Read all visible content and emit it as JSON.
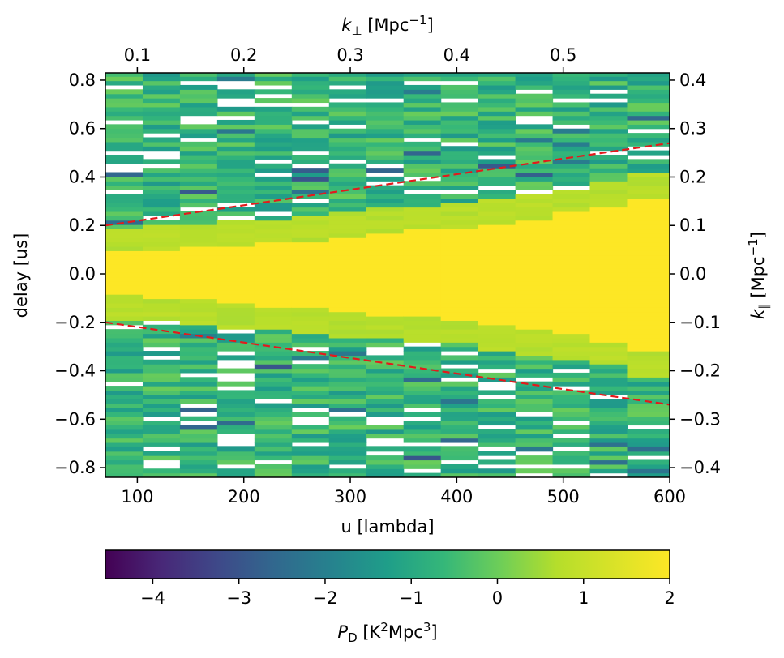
{
  "chart_data": {
    "type": "heatmap",
    "xlabel": "u [lambda]",
    "ylabel": "delay [us]",
    "top_xlabel": {
      "main": "k",
      "sub": "⊥",
      "unit_base": " [Mpc",
      "unit_exp": "−1",
      "unit_close": "]"
    },
    "right_ylabel": {
      "main": "k",
      "sub": "∥",
      "unit_base": " [Mpc",
      "unit_exp": "−1",
      "unit_close": "]"
    },
    "xlim": [
      70,
      600
    ],
    "ylim": [
      -0.84,
      0.83
    ],
    "x_ticks": [
      100,
      200,
      300,
      400,
      500,
      600
    ],
    "x_tick_labels": [
      "100",
      "200",
      "300",
      "400",
      "500",
      "600"
    ],
    "y_ticks": [
      -0.8,
      -0.6,
      -0.4,
      -0.2,
      0.0,
      0.2,
      0.4,
      0.6,
      0.8
    ],
    "y_tick_labels": [
      "−0.8",
      "−0.6",
      "−0.4",
      "−0.2",
      "0.0",
      "0.2",
      "0.4",
      "0.6",
      "0.8"
    ],
    "top_ticks_u": [
      100,
      200,
      300,
      400,
      500
    ],
    "top_tick_labels": [
      "0.1",
      "0.2",
      "0.3",
      "0.4",
      "0.5"
    ],
    "right_ticks_delay": [
      -0.8,
      -0.6,
      -0.4,
      -0.2,
      0.0,
      0.2,
      0.4,
      0.6,
      0.8
    ],
    "right_tick_labels": [
      "−0.4",
      "−0.3",
      "−0.2",
      "−0.1",
      "0.0",
      "0.1",
      "0.2",
      "0.3",
      "0.4"
    ],
    "u_bins": [
      70,
      105,
      140,
      175,
      210,
      245,
      280,
      315,
      350,
      385,
      420,
      455,
      490,
      525,
      560,
      600
    ],
    "saturated_halfwidth_delay": [
      0.09,
      0.1,
      0.11,
      0.12,
      0.13,
      0.14,
      0.155,
      0.17,
      0.18,
      0.19,
      0.21,
      0.23,
      0.25,
      0.28,
      0.32
    ],
    "horizon_line": {
      "color": "#e31a1c",
      "u": [
        70,
        600
      ],
      "delay_upper": [
        0.2,
        0.54
      ],
      "delay_lower": [
        -0.2,
        -0.54
      ]
    },
    "colorbar": {
      "label_main": "P",
      "label_sub": "D",
      "label_unit": " [K",
      "label_exp1": "2",
      "label_mid": "Mpc",
      "label_exp2": "3",
      "label_close": "]",
      "range": [
        -4.55,
        2
      ],
      "ticks": [
        -4,
        -3,
        -2,
        -1,
        0,
        1,
        2
      ],
      "tick_labels": [
        "−4",
        "−3",
        "−2",
        "−1",
        "0",
        "1",
        "2"
      ],
      "colormap": "viridis"
    }
  }
}
